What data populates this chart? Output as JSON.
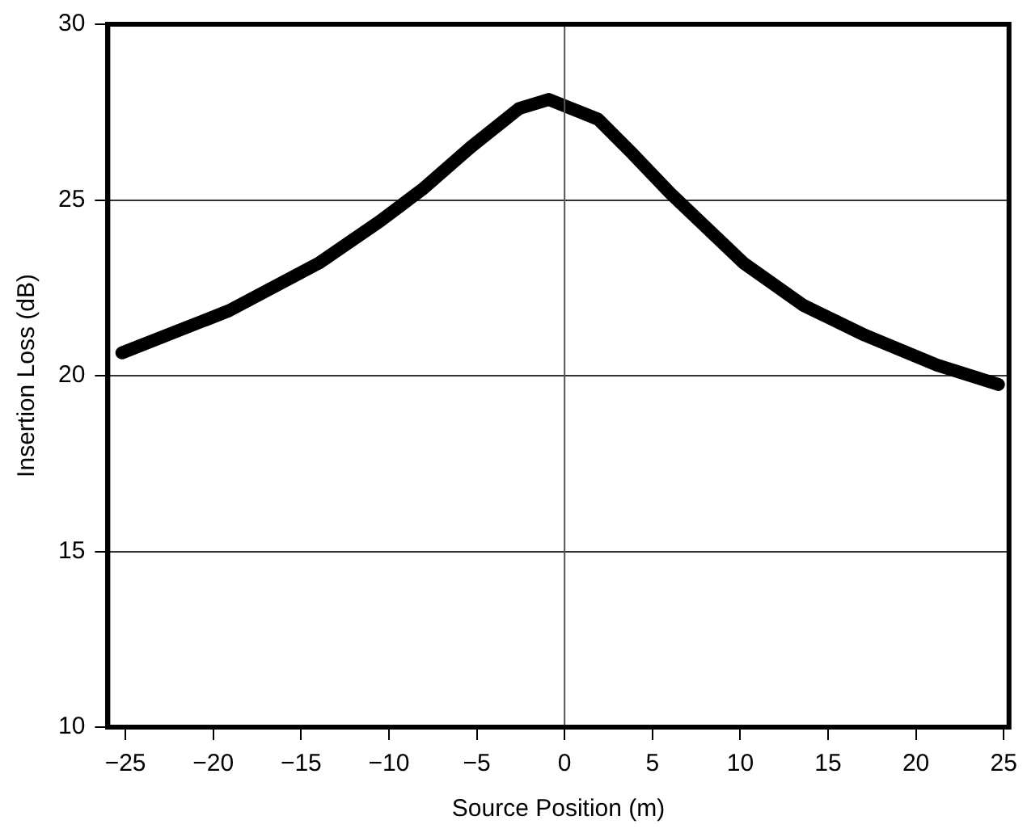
{
  "chart_data": {
    "type": "line",
    "xlabel": "Source Position (m)",
    "ylabel": "Insertion Loss (dB)",
    "x": [
      -25.2,
      -19.1,
      -14.0,
      -10.5,
      -8.1,
      -5.35,
      -2.6,
      -0.9,
      1.9,
      3.9,
      6.0,
      10.2,
      13.6,
      17.1,
      21.2,
      24.7
    ],
    "series": [
      {
        "color": "#000000",
        "values": [
          20.65,
          21.85,
          23.2,
          24.4,
          25.3,
          26.5,
          27.6,
          27.86,
          27.3,
          26.3,
          25.2,
          23.2,
          22.0,
          21.15,
          20.3,
          19.75
        ]
      }
    ],
    "xlim": [
      -26,
      25.3
    ],
    "xticks": [
      -25,
      -20,
      -15,
      -10,
      -5,
      0,
      5,
      10,
      15,
      20,
      25
    ],
    "ylim": [
      10,
      30
    ],
    "yticks": [
      10,
      15,
      20,
      25,
      30
    ],
    "grid": "y",
    "legend": false,
    "marker": "none",
    "line_style": "solid",
    "ref_lines": [
      {
        "axis": "x",
        "value": 0,
        "color": "#555555"
      }
    ]
  }
}
